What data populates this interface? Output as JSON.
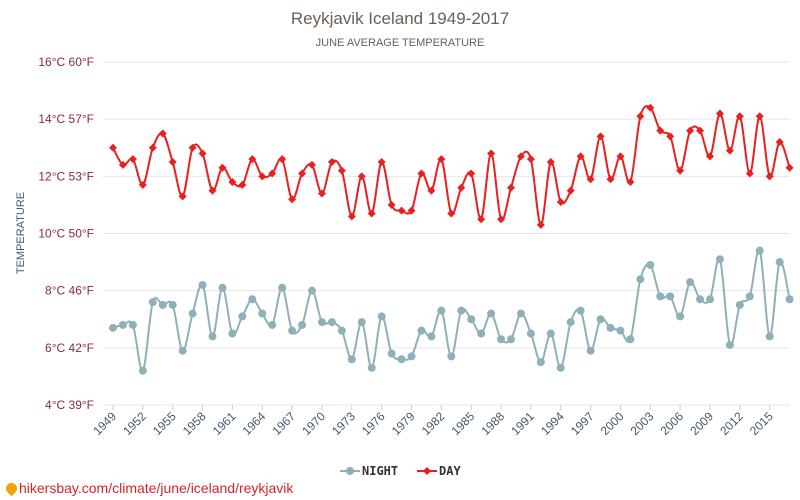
{
  "chart_data": {
    "type": "line",
    "title": "Reykjavik Iceland 1949-2017",
    "subtitle": "JUNE AVERAGE TEMPERATURE",
    "ylabel": "TEMPERATURE",
    "ylim": [
      4,
      16
    ],
    "yticks": [
      {
        "value": 4,
        "label": "4°C 39°F"
      },
      {
        "value": 6,
        "label": "6°C 42°F"
      },
      {
        "value": 8,
        "label": "8°C 46°F"
      },
      {
        "value": 10,
        "label": "10°C 50°F"
      },
      {
        "value": 12,
        "label": "12°C 53°F"
      },
      {
        "value": 14,
        "label": "14°C 57°F"
      },
      {
        "value": 16,
        "label": "16°C 60°F"
      }
    ],
    "xrange": [
      1949,
      2017
    ],
    "xtick_labels": [
      "1949",
      "1952",
      "1955",
      "1958",
      "1961",
      "1964",
      "1967",
      "1970",
      "1973",
      "1976",
      "1979",
      "1982",
      "1985",
      "1988",
      "1991",
      "1994",
      "1997",
      "2000",
      "2003",
      "2006",
      "2009",
      "2012",
      "2015"
    ],
    "grid": true,
    "legend_position": "bottom",
    "series": [
      {
        "name": "NIGHT",
        "color": "#8fb0b8",
        "values": [
          6.7,
          6.8,
          6.8,
          5.2,
          7.6,
          7.5,
          7.5,
          5.9,
          7.2,
          8.2,
          6.4,
          8.1,
          6.5,
          7.1,
          7.7,
          7.2,
          6.8,
          8.1,
          6.6,
          6.8,
          8.0,
          6.9,
          6.9,
          6.6,
          5.6,
          6.9,
          5.3,
          7.1,
          5.8,
          5.6,
          5.7,
          6.6,
          6.4,
          7.3,
          5.7,
          7.3,
          7.0,
          6.5,
          7.2,
          6.3,
          6.3,
          7.2,
          6.5,
          5.5,
          6.5,
          5.3,
          6.9,
          7.3,
          5.9,
          7.0,
          6.7,
          6.6,
          6.3,
          8.4,
          8.9,
          7.8,
          7.8,
          7.1,
          8.3,
          7.7,
          7.7,
          9.1,
          6.1,
          7.5,
          7.8,
          9.4,
          6.4,
          9.0,
          7.7
        ]
      },
      {
        "name": "DAY",
        "color": "#e8201f",
        "values": [
          13.0,
          12.4,
          12.6,
          11.7,
          13.0,
          13.5,
          12.5,
          11.3,
          13.0,
          12.8,
          11.5,
          12.3,
          11.8,
          11.7,
          12.6,
          12.0,
          12.1,
          12.6,
          11.2,
          12.1,
          12.4,
          11.4,
          12.5,
          12.2,
          10.6,
          12.0,
          10.7,
          12.5,
          11.0,
          10.8,
          10.8,
          12.1,
          11.5,
          12.6,
          10.7,
          11.6,
          12.1,
          10.5,
          12.8,
          10.5,
          11.6,
          12.7,
          12.6,
          10.3,
          12.5,
          11.1,
          11.5,
          12.7,
          11.9,
          13.4,
          11.9,
          12.7,
          11.8,
          14.1,
          14.4,
          13.6,
          13.4,
          12.2,
          13.6,
          13.6,
          12.7,
          14.2,
          12.9,
          14.1,
          12.1,
          14.1,
          12.0,
          13.2,
          12.3
        ]
      }
    ]
  },
  "source": {
    "text": "hikersbay.com/climate/june/iceland/reykjavik"
  }
}
